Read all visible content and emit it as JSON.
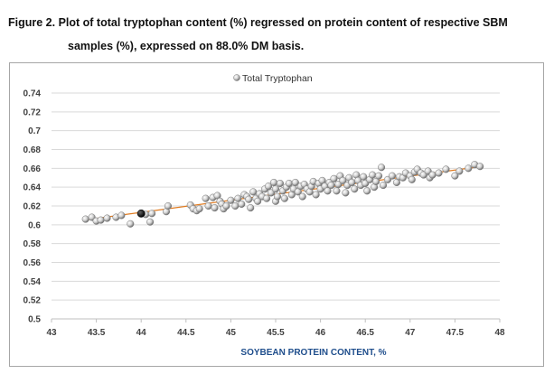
{
  "caption": {
    "line1": "Figure 2.  Plot of total tryptophan content (%) regressed on protein content of respective SBM",
    "line2": "samples (%), expressed on 88.0% DM basis."
  },
  "chart_data": {
    "type": "scatter",
    "xlabel": "SOYBEAN PROTEIN CONTENT, %",
    "ylabel": "",
    "xlim": [
      43,
      48
    ],
    "ylim": [
      0.5,
      0.74
    ],
    "x_ticks": [
      "43",
      "43.5",
      "44",
      "44.5",
      "45",
      "45.5",
      "46",
      "46.5",
      "47",
      "47.5",
      "48"
    ],
    "y_ticks": [
      "0.5",
      "0.52",
      "0.54",
      "0.56",
      "0.58",
      "0.6",
      "0.62",
      "0.64",
      "0.66",
      "0.68",
      "0.7",
      "0.72",
      "0.74"
    ],
    "grid": "horizontal",
    "legend_position": "top-center",
    "colors": {
      "point": "#c8c8c8",
      "trendline": "#e07b20",
      "highlight": "#111111",
      "axis_title": "#1f4e8c"
    },
    "series": [
      {
        "name": "Total Tryptophan",
        "points": [
          [
            43.38,
            0.606
          ],
          [
            43.45,
            0.608
          ],
          [
            43.5,
            0.604
          ],
          [
            43.55,
            0.605
          ],
          [
            43.62,
            0.607
          ],
          [
            43.72,
            0.608
          ],
          [
            43.78,
            0.61
          ],
          [
            43.88,
            0.601
          ],
          [
            44.05,
            0.611
          ],
          [
            44.1,
            0.603
          ],
          [
            44.12,
            0.612
          ],
          [
            44.28,
            0.614
          ],
          [
            44.3,
            0.62
          ],
          [
            44.55,
            0.621
          ],
          [
            44.58,
            0.617
          ],
          [
            44.62,
            0.615
          ],
          [
            44.65,
            0.617
          ],
          [
            44.72,
            0.628
          ],
          [
            44.75,
            0.62
          ],
          [
            44.8,
            0.629
          ],
          [
            44.82,
            0.618
          ],
          [
            44.85,
            0.631
          ],
          [
            44.88,
            0.625
          ],
          [
            44.9,
            0.622
          ],
          [
            44.92,
            0.617
          ],
          [
            44.95,
            0.62
          ],
          [
            45.0,
            0.626
          ],
          [
            45.05,
            0.62
          ],
          [
            45.08,
            0.628
          ],
          [
            45.12,
            0.622
          ],
          [
            45.15,
            0.632
          ],
          [
            45.18,
            0.63
          ],
          [
            45.2,
            0.627
          ],
          [
            45.22,
            0.618
          ],
          [
            45.25,
            0.635
          ],
          [
            45.28,
            0.628
          ],
          [
            45.3,
            0.625
          ],
          [
            45.32,
            0.633
          ],
          [
            45.35,
            0.63
          ],
          [
            45.38,
            0.638
          ],
          [
            45.4,
            0.628
          ],
          [
            45.42,
            0.641
          ],
          [
            45.45,
            0.634
          ],
          [
            45.48,
            0.645
          ],
          [
            45.5,
            0.625
          ],
          [
            45.5,
            0.638
          ],
          [
            45.52,
            0.63
          ],
          [
            45.55,
            0.644
          ],
          [
            45.58,
            0.636
          ],
          [
            45.6,
            0.628
          ],
          [
            45.62,
            0.64
          ],
          [
            45.65,
            0.644
          ],
          [
            45.68,
            0.632
          ],
          [
            45.7,
            0.638
          ],
          [
            45.72,
            0.645
          ],
          [
            45.75,
            0.635
          ],
          [
            45.78,
            0.641
          ],
          [
            45.8,
            0.63
          ],
          [
            45.82,
            0.643
          ],
          [
            45.85,
            0.638
          ],
          [
            45.88,
            0.635
          ],
          [
            45.9,
            0.641
          ],
          [
            45.92,
            0.646
          ],
          [
            45.95,
            0.632
          ],
          [
            45.98,
            0.644
          ],
          [
            46.0,
            0.638
          ],
          [
            46.02,
            0.647
          ],
          [
            46.05,
            0.641
          ],
          [
            46.08,
            0.636
          ],
          [
            46.1,
            0.645
          ],
          [
            46.12,
            0.642
          ],
          [
            46.15,
            0.649
          ],
          [
            46.18,
            0.636
          ],
          [
            46.2,
            0.643
          ],
          [
            46.22,
            0.652
          ],
          [
            46.25,
            0.647
          ],
          [
            46.28,
            0.634
          ],
          [
            46.3,
            0.642
          ],
          [
            46.32,
            0.65
          ],
          [
            46.35,
            0.645
          ],
          [
            46.38,
            0.638
          ],
          [
            46.4,
            0.653
          ],
          [
            46.42,
            0.647
          ],
          [
            46.45,
            0.642
          ],
          [
            46.48,
            0.651
          ],
          [
            46.5,
            0.644
          ],
          [
            46.52,
            0.636
          ],
          [
            46.55,
            0.648
          ],
          [
            46.58,
            0.653
          ],
          [
            46.6,
            0.64
          ],
          [
            46.62,
            0.646
          ],
          [
            46.65,
            0.652
          ],
          [
            46.68,
            0.661
          ],
          [
            46.7,
            0.642
          ],
          [
            46.75,
            0.648
          ],
          [
            46.8,
            0.652
          ],
          [
            46.85,
            0.645
          ],
          [
            46.88,
            0.651
          ],
          [
            46.92,
            0.65
          ],
          [
            46.95,
            0.655
          ],
          [
            47.0,
            0.652
          ],
          [
            47.02,
            0.648
          ],
          [
            47.05,
            0.656
          ],
          [
            47.08,
            0.659
          ],
          [
            47.12,
            0.655
          ],
          [
            47.15,
            0.653
          ],
          [
            47.2,
            0.657
          ],
          [
            47.22,
            0.65
          ],
          [
            47.25,
            0.653
          ],
          [
            47.32,
            0.655
          ],
          [
            47.4,
            0.659
          ],
          [
            47.5,
            0.652
          ],
          [
            47.55,
            0.657
          ],
          [
            47.65,
            0.66
          ],
          [
            47.72,
            0.664
          ],
          [
            47.78,
            0.662
          ]
        ],
        "highlight_point": [
          44.0,
          0.612
        ],
        "trendline": [
          [
            43.4,
            0.6055
          ],
          [
            47.8,
            0.662
          ]
        ]
      }
    ]
  }
}
